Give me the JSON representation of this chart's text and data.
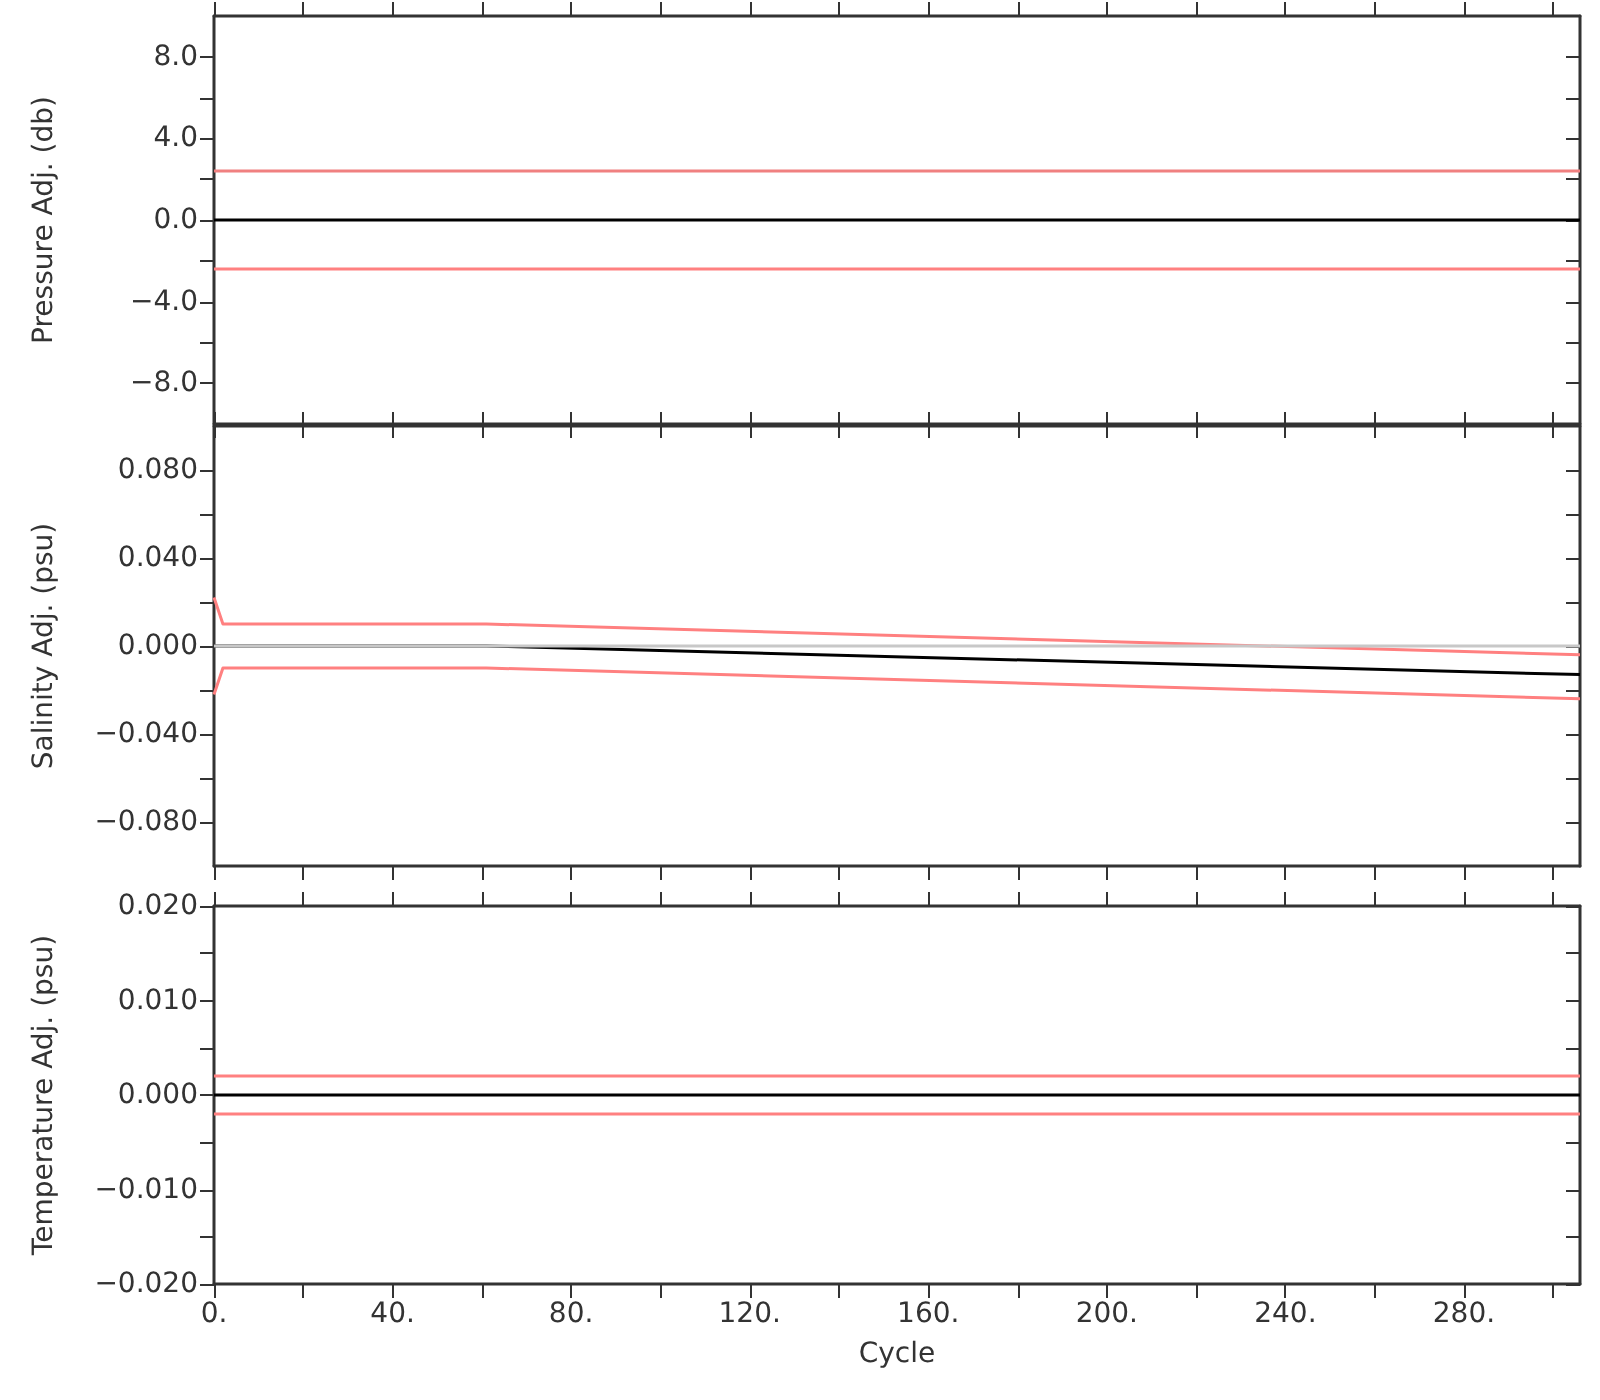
{
  "chart_data": [
    {
      "type": "line",
      "ylabel": "Pressure Adj. (db)",
      "tick_labels": "y",
      "marker": "none",
      "line_style": "solid",
      "xlim": [
        0,
        306
      ],
      "ylim": [
        -10,
        10
      ],
      "xticks": [
        {
          "value": 0,
          "label": null
        },
        {
          "value": 20,
          "label": null
        },
        {
          "value": 40,
          "label": null
        },
        {
          "value": 60,
          "label": null
        },
        {
          "value": 80,
          "label": null
        },
        {
          "value": 100,
          "label": null
        },
        {
          "value": 120,
          "label": null
        },
        {
          "value": 140,
          "label": null
        },
        {
          "value": 160,
          "label": null
        },
        {
          "value": 180,
          "label": null
        },
        {
          "value": 200,
          "label": null
        },
        {
          "value": 220,
          "label": null
        },
        {
          "value": 240,
          "label": null
        },
        {
          "value": 260,
          "label": null
        },
        {
          "value": 280,
          "label": null
        },
        {
          "value": 300,
          "label": null
        }
      ],
      "yticks": [
        {
          "value": -8,
          "label": "−8.0"
        },
        {
          "value": -6,
          "label": null
        },
        {
          "value": -4,
          "label": "−4.0"
        },
        {
          "value": -2,
          "label": null
        },
        {
          "value": 0,
          "label": "0.0"
        },
        {
          "value": 2,
          "label": null
        },
        {
          "value": 4,
          "label": "4.0"
        },
        {
          "value": 6,
          "label": null
        },
        {
          "value": 8,
          "label": "8.0"
        }
      ],
      "series": [
        {
          "color": "#f08080",
          "x": [
            0,
            306
          ],
          "values": [
            2.4,
            2.4
          ]
        },
        {
          "color": "#ff8080",
          "x": [
            0,
            306
          ],
          "values": [
            -2.4,
            -2.4
          ]
        },
        {
          "color": "#000000",
          "x": [
            0,
            306
          ],
          "values": [
            0,
            0
          ]
        }
      ]
    },
    {
      "type": "line",
      "ylabel": "Salinity Adj. (psu)",
      "tick_labels": "y",
      "marker": "none",
      "line_style": "solid",
      "xlim": [
        0,
        306
      ],
      "ylim": [
        -0.1,
        0.1
      ],
      "xticks": [
        {
          "value": 0,
          "label": null
        },
        {
          "value": 20,
          "label": null
        },
        {
          "value": 40,
          "label": null
        },
        {
          "value": 60,
          "label": null
        },
        {
          "value": 80,
          "label": null
        },
        {
          "value": 100,
          "label": null
        },
        {
          "value": 120,
          "label": null
        },
        {
          "value": 140,
          "label": null
        },
        {
          "value": 160,
          "label": null
        },
        {
          "value": 180,
          "label": null
        },
        {
          "value": 200,
          "label": null
        },
        {
          "value": 220,
          "label": null
        },
        {
          "value": 240,
          "label": null
        },
        {
          "value": 260,
          "label": null
        },
        {
          "value": 280,
          "label": null
        },
        {
          "value": 300,
          "label": null
        }
      ],
      "yticks": [
        {
          "value": -0.08,
          "label": "−0.080"
        },
        {
          "value": -0.06,
          "label": null
        },
        {
          "value": -0.04,
          "label": "−0.040"
        },
        {
          "value": -0.02,
          "label": null
        },
        {
          "value": 0,
          "label": "0.000"
        },
        {
          "value": 0.02,
          "label": null
        },
        {
          "value": 0.04,
          "label": "0.040"
        },
        {
          "value": 0.06,
          "label": null
        },
        {
          "value": 0.08,
          "label": "0.080"
        }
      ],
      "ref_lines": [
        {
          "axis": "y",
          "value": 0,
          "color": "#c8c8c8"
        }
      ],
      "series": [
        {
          "color": "#ff8080",
          "x": [
            0,
            2,
            61,
            306
          ],
          "values": [
            0.022,
            0.01,
            0.01,
            -0.004
          ]
        },
        {
          "color": "#ff8080",
          "x": [
            0,
            2,
            61,
            306
          ],
          "values": [
            -0.022,
            -0.01,
            -0.01,
            -0.024
          ]
        },
        {
          "color": "#000000",
          "x": [
            0,
            61,
            306
          ],
          "values": [
            0,
            0,
            -0.013
          ]
        }
      ]
    },
    {
      "type": "line",
      "ylabel": "Temperature Adj. (psu)",
      "xlabel": "Cycle",
      "marker": "none",
      "line_style": "solid",
      "xlim": [
        0,
        306
      ],
      "ylim": [
        -0.02,
        0.02
      ],
      "xticks": [
        {
          "value": 0,
          "label": "0."
        },
        {
          "value": 20,
          "label": null
        },
        {
          "value": 40,
          "label": "40."
        },
        {
          "value": 60,
          "label": null
        },
        {
          "value": 80,
          "label": "80."
        },
        {
          "value": 100,
          "label": null
        },
        {
          "value": 120,
          "label": "120."
        },
        {
          "value": 140,
          "label": null
        },
        {
          "value": 160,
          "label": "160."
        },
        {
          "value": 180,
          "label": null
        },
        {
          "value": 200,
          "label": "200."
        },
        {
          "value": 220,
          "label": null
        },
        {
          "value": 240,
          "label": "240."
        },
        {
          "value": 260,
          "label": null
        },
        {
          "value": 280,
          "label": "280."
        },
        {
          "value": 300,
          "label": null
        }
      ],
      "yticks": [
        {
          "value": -0.02,
          "label": "−0.020"
        },
        {
          "value": -0.015,
          "label": null
        },
        {
          "value": -0.01,
          "label": "−0.010"
        },
        {
          "value": -0.005,
          "label": null
        },
        {
          "value": 0,
          "label": "0.000"
        },
        {
          "value": 0.005,
          "label": null
        },
        {
          "value": 0.01,
          "label": "0.010"
        },
        {
          "value": 0.015,
          "label": null
        },
        {
          "value": 0.02,
          "label": "0.020"
        }
      ],
      "series": [
        {
          "color": "#ff8080",
          "x": [
            0,
            306
          ],
          "values": [
            0.002,
            0.002
          ]
        },
        {
          "color": "#ff8080",
          "x": [
            0,
            306
          ],
          "values": [
            -0.002,
            -0.002
          ]
        },
        {
          "color": "#000000",
          "x": [
            0,
            306
          ],
          "values": [
            0,
            0
          ]
        }
      ]
    }
  ]
}
